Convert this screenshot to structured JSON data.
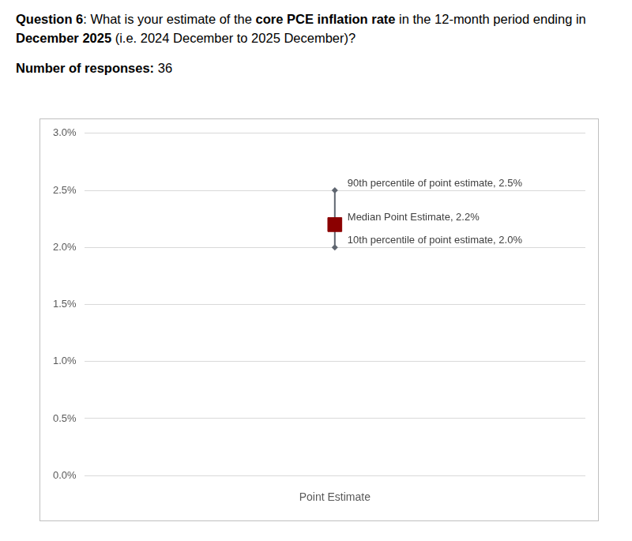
{
  "header": {
    "title_runs": [
      {
        "text": "Question 6",
        "bold": true
      },
      {
        "text": ": What is your estimate of the ",
        "bold": false
      },
      {
        "text": "core PCE inflation rate",
        "bold": true
      },
      {
        "text": " in the 12-month period ending in ",
        "bold": false
      },
      {
        "text": "December 2025",
        "bold": true
      },
      {
        "text": " (i.e. 2024 December to 2025 December)?",
        "bold": false
      }
    ],
    "responses_label": "Number of responses:",
    "responses": 36
  },
  "chart_data": {
    "type": "scatter",
    "marker": "square",
    "color": "#8b0000",
    "categories": [
      "Point Estimate"
    ],
    "values": [
      2.2
    ],
    "lower": [
      2.0
    ],
    "upper": [
      2.5
    ],
    "ylim": [
      0,
      3
    ],
    "yticks": [
      {
        "value": 0,
        "label": "0.0%"
      },
      {
        "value": 0.5,
        "label": "0.5%"
      },
      {
        "value": 1,
        "label": "1.0%"
      },
      {
        "value": 1.5,
        "label": "1.5%"
      },
      {
        "value": 2,
        "label": "2.0%"
      },
      {
        "value": 2.5,
        "label": "2.5%"
      },
      {
        "value": 3,
        "label": "3.0%"
      }
    ],
    "grid": true,
    "annotations": [
      {
        "text": "90th percentile of point estimate, 2.5%",
        "y": 2.5
      },
      {
        "text": "Median Point Estimate, 2.2%",
        "y": 2.2
      },
      {
        "text": "10th percentile of point estimate, 2.0%",
        "y": 2.0
      }
    ]
  }
}
